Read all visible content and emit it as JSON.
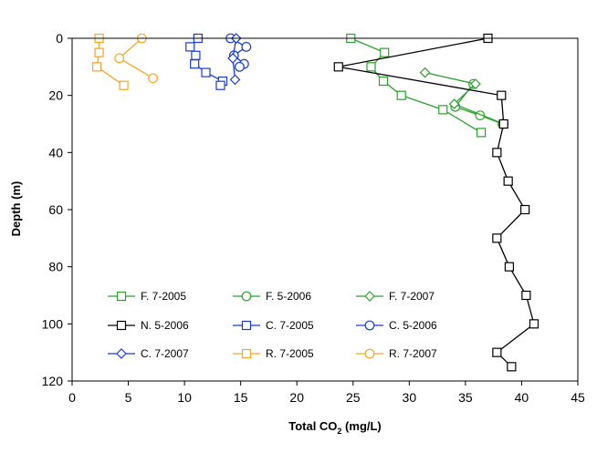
{
  "chart_data": {
    "type": "line",
    "xlabel": "Total CO2 (mg/L)",
    "xlabel_main": "Total CO",
    "xlabel_sub": "2",
    "xlabel_tail": " (mg/L)",
    "ylabel": "Depth (m)",
    "xlim": [
      0,
      45
    ],
    "ylim": [
      0,
      120
    ],
    "y_inverted": true,
    "x_ticks": [
      "0",
      "5",
      "10",
      "15",
      "20",
      "25",
      "30",
      "35",
      "40",
      "45"
    ],
    "y_ticks": [
      "0",
      "20",
      "40",
      "60",
      "80",
      "100",
      "120"
    ],
    "grid": false,
    "legend_position": "bottom-left, inside plot",
    "series": [
      {
        "name": "F. 7-2005",
        "color": "#2ca02c",
        "marker": "square",
        "points": [
          [
            24.8,
            0
          ],
          [
            27.8,
            5
          ],
          [
            26.6,
            10
          ],
          [
            27.7,
            15
          ],
          [
            29.3,
            20
          ],
          [
            33.0,
            25
          ],
          [
            36.4,
            33
          ]
        ]
      },
      {
        "name": "F. 5-2006",
        "color": "#2ca02c",
        "marker": "circle",
        "points": [
          [
            35.7,
            16
          ],
          [
            34.1,
            24
          ],
          [
            36.3,
            27
          ],
          [
            38.3,
            30
          ]
        ]
      },
      {
        "name": "F. 7-2007",
        "color": "#2ca02c",
        "marker": "diamond",
        "points": [
          [
            31.4,
            12
          ],
          [
            35.9,
            16
          ],
          [
            34.0,
            23
          ],
          [
            38.4,
            30
          ]
        ]
      },
      {
        "name": "N. 5-2006",
        "color": "#000000",
        "marker": "square",
        "points": [
          [
            37.0,
            0
          ],
          [
            23.7,
            10
          ],
          [
            38.2,
            20
          ],
          [
            38.4,
            30
          ],
          [
            37.8,
            40
          ],
          [
            38.8,
            50
          ],
          [
            40.3,
            60
          ],
          [
            37.8,
            70
          ],
          [
            38.9,
            80
          ],
          [
            40.4,
            90
          ],
          [
            41.1,
            100
          ],
          [
            37.8,
            110
          ],
          [
            39.1,
            115
          ]
        ]
      },
      {
        "name": "C. 7-2005",
        "color": "#1a3ad6",
        "marker": "square",
        "points": [
          [
            11.2,
            0
          ],
          [
            10.5,
            3
          ],
          [
            11.0,
            6
          ],
          [
            10.9,
            9
          ],
          [
            11.9,
            12
          ],
          [
            13.4,
            15
          ],
          [
            13.2,
            16.5
          ]
        ]
      },
      {
        "name": "C. 5-2006",
        "color": "#1a3ad6",
        "marker": "circle",
        "points": [
          [
            14.1,
            0
          ],
          [
            15.5,
            3
          ],
          [
            14.4,
            6
          ],
          [
            15.3,
            9
          ],
          [
            14.9,
            10
          ]
        ]
      },
      {
        "name": "C. 7-2007",
        "color": "#1a3ad6",
        "marker": "diamond",
        "points": [
          [
            14.6,
            0
          ],
          [
            14.3,
            7
          ],
          [
            14.5,
            14.5
          ]
        ]
      },
      {
        "name": "R. 7-2005",
        "color": "#f5a623",
        "marker": "square",
        "points": [
          [
            2.4,
            0
          ],
          [
            2.4,
            5
          ],
          [
            2.2,
            10
          ],
          [
            4.6,
            16.5
          ]
        ]
      },
      {
        "name": "R. 7-2007",
        "color": "#f5a623",
        "marker": "circle",
        "points": [
          [
            6.2,
            0
          ],
          [
            4.2,
            7
          ],
          [
            7.2,
            14
          ]
        ]
      }
    ]
  }
}
